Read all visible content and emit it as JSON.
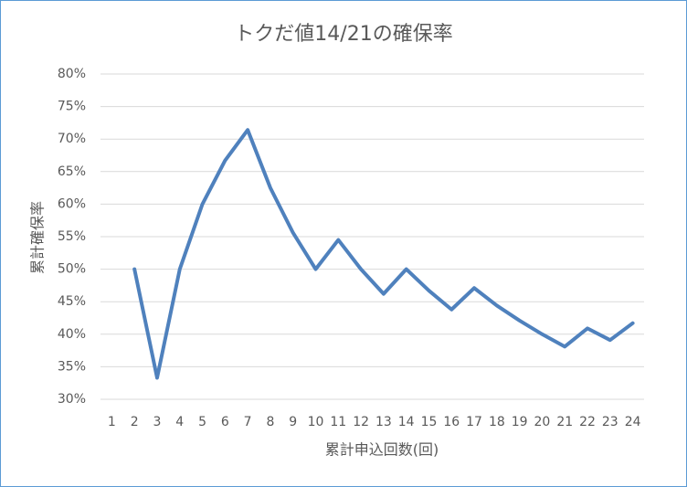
{
  "chart_data": {
    "type": "line",
    "title": "トクだ値14/21の確保率",
    "x_label": "累計申込回数(回)",
    "y_label": "累計確保率",
    "categories": [
      "1",
      "2",
      "3",
      "4",
      "5",
      "6",
      "7",
      "8",
      "9",
      "10",
      "11",
      "12",
      "13",
      "14",
      "15",
      "16",
      "17",
      "18",
      "19",
      "20",
      "21",
      "22",
      "23",
      "24"
    ],
    "series": [
      {
        "name": "累計確保率",
        "color": "#4f81bd",
        "values": [
          null,
          50,
          33.3,
          50,
          60,
          66.7,
          71.4,
          62.5,
          55.6,
          50,
          54.5,
          50,
          46.2,
          50,
          46.7,
          43.8,
          47.1,
          44.4,
          42.1,
          40,
          38.1,
          40.9,
          39.1,
          41.7
        ]
      }
    ],
    "ylim": [
      30,
      80
    ],
    "yticks": [
      {
        "value": 30,
        "label": "30%"
      },
      {
        "value": 35,
        "label": "35%"
      },
      {
        "value": 40,
        "label": "40%"
      },
      {
        "value": 45,
        "label": "45%"
      },
      {
        "value": 50,
        "label": "50%"
      },
      {
        "value": 55,
        "label": "55%"
      },
      {
        "value": 60,
        "label": "60%"
      },
      {
        "value": 65,
        "label": "65%"
      },
      {
        "value": 70,
        "label": "70%"
      },
      {
        "value": 75,
        "label": "75%"
      },
      {
        "value": 80,
        "label": "80%"
      }
    ],
    "grid": true
  }
}
